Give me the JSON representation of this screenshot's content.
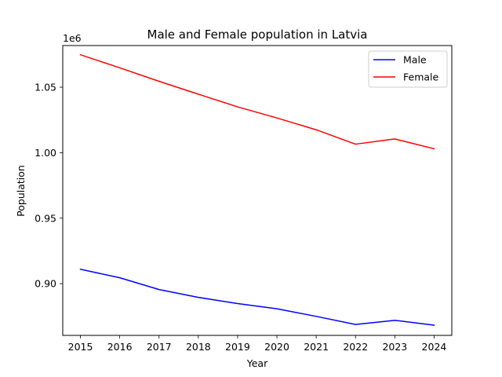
{
  "chart_data": {
    "type": "line",
    "title": "Male and Female population in Latvia",
    "xlabel": "Year",
    "ylabel": "Population",
    "offset_label": "1e6",
    "x": [
      2015,
      2016,
      2017,
      2018,
      2019,
      2020,
      2021,
      2022,
      2023,
      2024
    ],
    "x_tick_labels": [
      "2015",
      "2016",
      "2017",
      "2018",
      "2019",
      "2020",
      "2021",
      "2022",
      "2023",
      "2024"
    ],
    "y_ticks": [
      0.9,
      0.95,
      1.0,
      1.05
    ],
    "y_tick_labels": [
      "0.90",
      "0.95",
      "1.00",
      "1.05"
    ],
    "xlim": [
      2014.55,
      2024.45
    ],
    "ylim": [
      0.8605,
      1.0818
    ],
    "series": [
      {
        "name": "Male",
        "color": "#0000ff",
        "values": [
          0.911,
          0.9045,
          0.8955,
          0.8895,
          0.8848,
          0.8808,
          0.875,
          0.8688,
          0.872,
          0.8683
        ]
      },
      {
        "name": "Female",
        "color": "#ff0000",
        "values": [
          1.0748,
          1.0648,
          1.0545,
          1.0447,
          1.035,
          1.0265,
          1.0175,
          1.0065,
          1.0105,
          1.003
        ]
      }
    ],
    "legend_position": "top-right",
    "grid": false
  }
}
